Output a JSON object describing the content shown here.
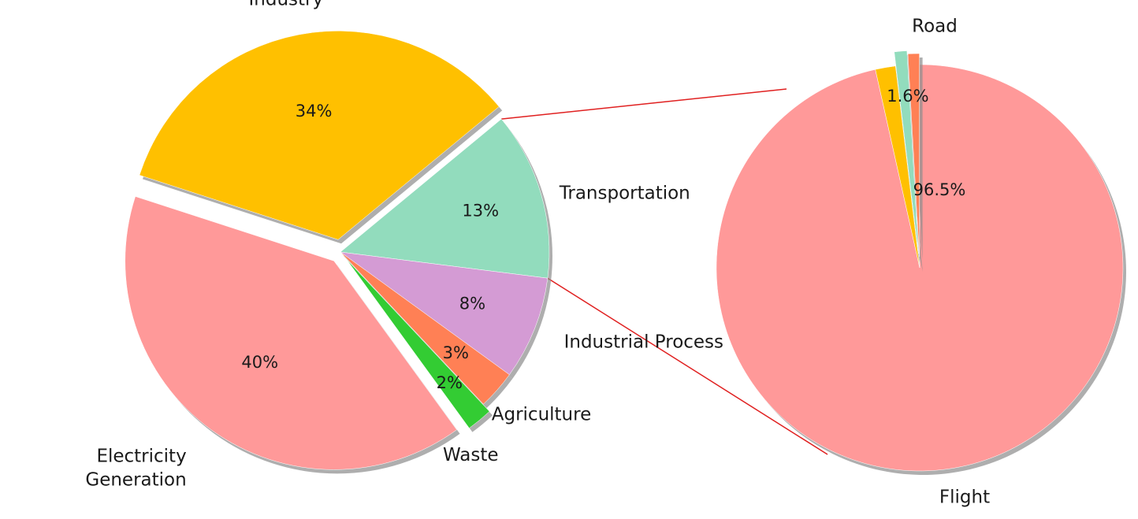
{
  "chart_data": [
    {
      "type": "pie",
      "slices": [
        {
          "name": "Electricity Generation",
          "label": "Electricity\nGeneration",
          "value": 40,
          "percent_label": "40%",
          "color": "#ff9999"
        },
        {
          "name": "Industry",
          "label": "Industry",
          "value": 34,
          "percent_label": "34%",
          "color": "#ffc000"
        },
        {
          "name": "Transportation",
          "label": "Transportation",
          "value": 13,
          "percent_label": "13%",
          "color": "#92dcbd"
        },
        {
          "name": "Industrial Process",
          "label": "Industrial Process",
          "value": 8,
          "percent_label": "8%",
          "color": "#d49bd4"
        },
        {
          "name": "Agriculture",
          "label": "Agriculture",
          "value": 3,
          "percent_label": "3%",
          "color": "#ff8055"
        },
        {
          "name": "Waste",
          "label": "Waste",
          "value": 2,
          "percent_label": "2%",
          "color": "#33cc33"
        }
      ]
    },
    {
      "type": "pie",
      "slices": [
        {
          "name": "Road",
          "label": "Road",
          "value": 96.5,
          "percent_label": "96.5%",
          "color": "#ff9999"
        },
        {
          "name": "Flight",
          "label": "Flight",
          "value": 1.6,
          "percent_label": "1.6%",
          "color": "#ffc000"
        },
        {
          "name": "",
          "label": "",
          "value": 1.0,
          "percent_label": "",
          "color": "#92dcbd"
        },
        {
          "name": "",
          "label": "",
          "value": 0.9,
          "percent_label": "",
          "color": "#ff8055"
        }
      ]
    }
  ],
  "connector_color": "#e02020"
}
